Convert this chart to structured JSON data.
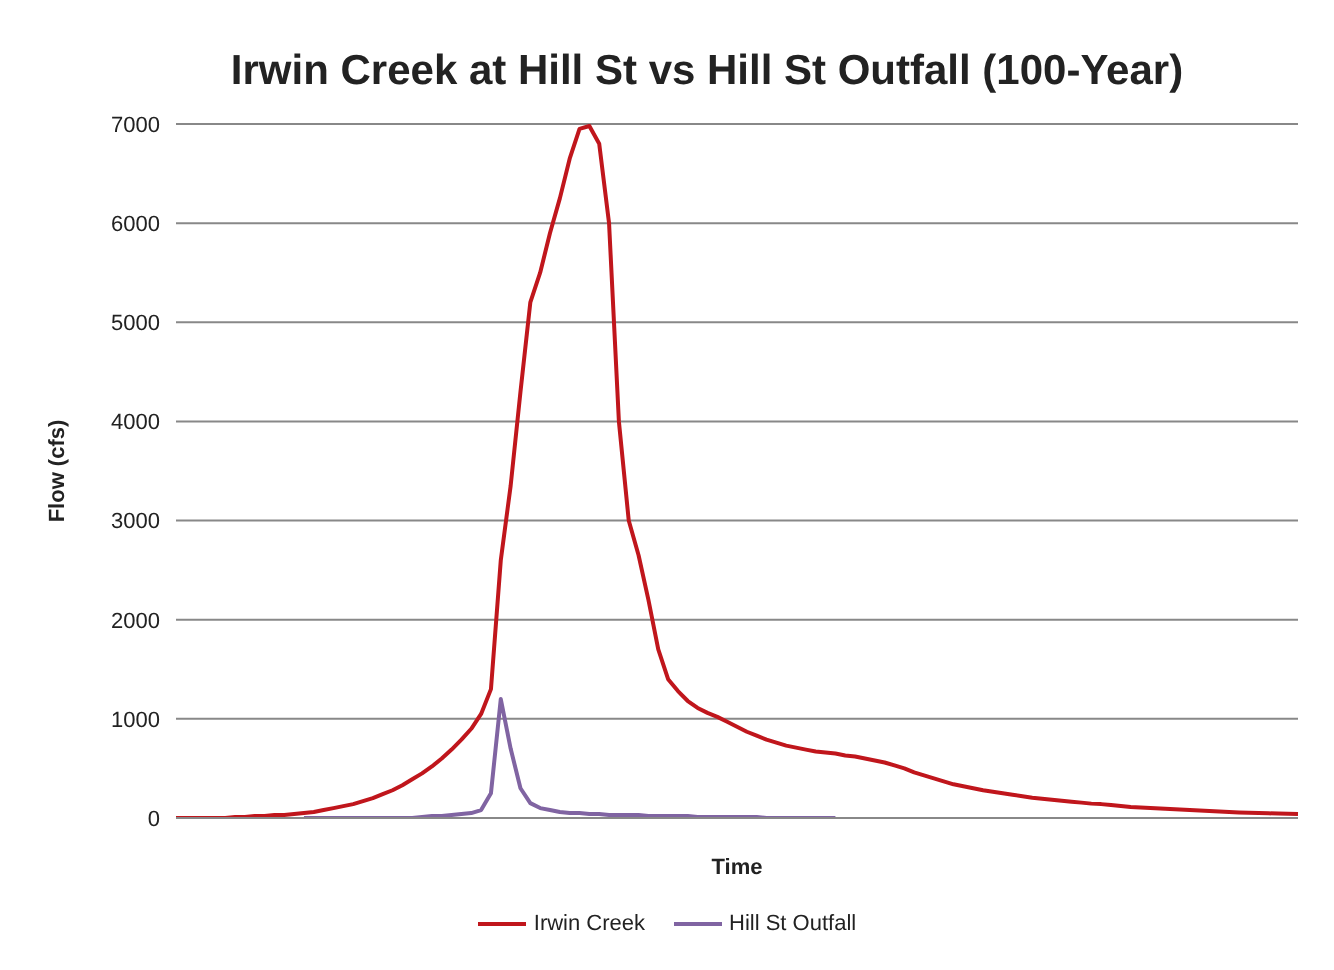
{
  "chart_data": {
    "type": "line",
    "title": "Irwin Creek at Hill St vs Hill St Outfall (100-Year)",
    "xlabel": "Time",
    "ylabel": "Flow (cfs)",
    "categories": [
      null,
      null,
      null,
      null,
      null,
      null,
      null,
      null,
      null,
      null,
      null,
      null,
      null,
      null,
      null,
      null,
      null,
      null,
      null,
      null,
      null,
      null,
      null,
      null,
      null,
      null,
      null,
      null,
      null,
      null,
      null,
      null,
      null,
      null,
      null,
      null,
      null,
      null,
      null,
      null,
      null,
      null,
      null,
      null,
      null,
      null,
      null,
      null,
      null,
      null,
      null,
      null,
      null,
      null,
      null,
      null,
      null,
      null,
      null,
      null,
      null,
      null,
      null,
      null,
      null,
      null,
      null,
      null,
      null,
      null,
      null,
      null,
      null,
      null,
      null,
      null,
      null,
      null,
      null,
      null,
      null,
      null,
      null,
      null,
      null,
      null,
      null,
      null,
      null,
      null,
      null,
      null,
      null,
      null,
      null,
      null,
      null,
      null,
      null,
      null,
      null,
      null,
      null,
      null,
      null,
      null,
      null,
      null,
      null,
      null,
      null,
      null,
      null,
      null,
      null
    ],
    "series": [
      {
        "name": "Irwin Creek",
        "color": "#c0161c",
        "values": [
          0,
          0,
          0,
          0,
          0,
          0,
          10,
          10,
          20,
          20,
          30,
          30,
          40,
          50,
          60,
          80,
          100,
          120,
          140,
          170,
          200,
          240,
          280,
          330,
          390,
          450,
          520,
          600,
          690,
          790,
          900,
          1050,
          1300,
          2600,
          3350,
          4300,
          5200,
          5500,
          5900,
          6250,
          6650,
          6950,
          6980,
          6800,
          6000,
          4000,
          3000,
          2650,
          2200,
          1700,
          1400,
          1280,
          1180,
          1110,
          1060,
          1020,
          970,
          920,
          870,
          830,
          790,
          760,
          730,
          710,
          690,
          670,
          660,
          650,
          630,
          620,
          600,
          580,
          560,
          530,
          500,
          460,
          430,
          400,
          370,
          340,
          320,
          300,
          280,
          265,
          250,
          235,
          220,
          205,
          195,
          185,
          175,
          165,
          155,
          145,
          140,
          130,
          120,
          110,
          105,
          100,
          95,
          90,
          85,
          80,
          75,
          70,
          65,
          60,
          55,
          52,
          50,
          47,
          45,
          42,
          40
        ]
      },
      {
        "name": "Hill St Outfall",
        "color": "#8064a2",
        "values": [
          null,
          null,
          null,
          null,
          null,
          null,
          null,
          null,
          null,
          null,
          null,
          null,
          null,
          0,
          0,
          0,
          0,
          0,
          0,
          0,
          0,
          0,
          0,
          0,
          0,
          10,
          20,
          20,
          30,
          40,
          50,
          80,
          250,
          1200,
          700,
          300,
          150,
          100,
          80,
          60,
          50,
          50,
          40,
          40,
          30,
          30,
          30,
          30,
          20,
          20,
          20,
          20,
          20,
          10,
          10,
          10,
          10,
          10,
          10,
          10,
          0,
          0,
          0,
          0,
          0,
          0,
          0,
          0,
          null,
          null,
          null,
          null,
          null,
          null,
          null,
          null,
          null,
          null,
          null,
          null,
          null,
          null,
          null,
          null,
          null,
          null,
          null,
          null,
          null,
          null,
          null,
          null,
          null,
          null,
          null,
          null,
          null,
          null,
          null,
          null,
          null,
          null,
          null,
          null,
          null,
          null,
          null,
          null,
          null,
          null,
          null,
          null,
          null,
          null,
          null
        ]
      }
    ],
    "ylim": [
      0,
      7000
    ],
    "yticks": [
      0,
      1000,
      2000,
      3000,
      4000,
      5000,
      6000,
      7000
    ],
    "grid": "y",
    "legend": "bottom",
    "marker": "none",
    "line_style": "solid"
  }
}
